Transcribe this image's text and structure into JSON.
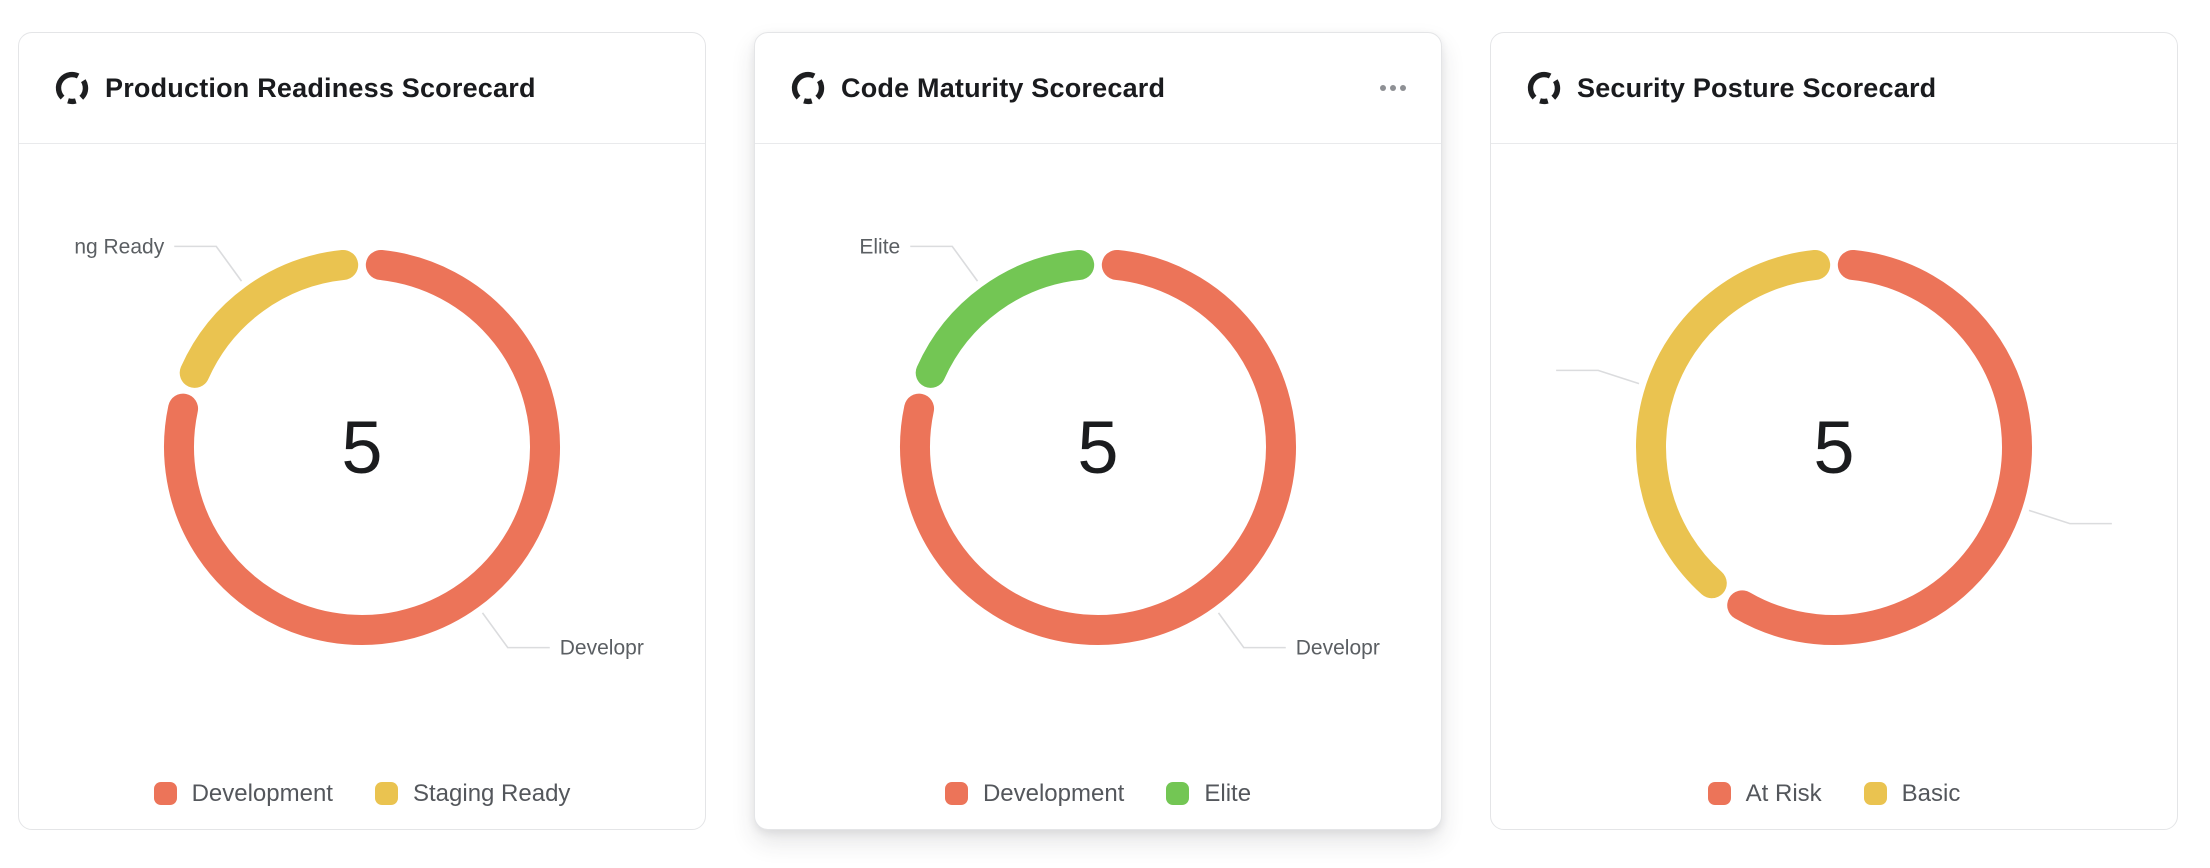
{
  "page": {
    "background": "#ffffff"
  },
  "colors": {
    "red": "#EC7459",
    "yellow": "#EAC350",
    "green": "#73C654",
    "leader_line": "#DBDCDE",
    "title_text": "#1A1B1E",
    "legend_text": "#54575C",
    "callout_text": "#5B5F63",
    "center_text": "#1B1C1E",
    "card_border": "#E4E5E7"
  },
  "chart_data": [
    {
      "type": "pie",
      "donut": true,
      "title": "Production Readiness Scorecard",
      "icon": "donut-chart-icon",
      "center_label": "5",
      "total": 5,
      "legend_position": "bottom",
      "series": [
        {
          "name": "Development",
          "value": 4,
          "color": "#EC7459",
          "callout_text": "Developr"
        },
        {
          "name": "Staging Ready",
          "value": 1,
          "color": "#EAC350",
          "callout_text": "ng Ready"
        }
      ]
    },
    {
      "type": "pie",
      "donut": true,
      "title": "Code Maturity Scorecard",
      "icon": "donut-chart-icon",
      "menu_icon": "more-horizontal",
      "center_label": "5",
      "total": 5,
      "legend_position": "bottom",
      "series": [
        {
          "name": "Development",
          "value": 4,
          "color": "#EC7459",
          "callout_text": "Developr"
        },
        {
          "name": "Elite",
          "value": 1,
          "color": "#73C654",
          "callout_text": "Elite"
        }
      ]
    },
    {
      "type": "pie",
      "donut": true,
      "title": "Security Posture Scorecard",
      "icon": "donut-chart-icon",
      "center_label": "5",
      "total": 5,
      "legend_position": "bottom",
      "series": [
        {
          "name": "At Risk",
          "value": 3,
          "color": "#EC7459",
          "callout_text": ""
        },
        {
          "name": "Basic",
          "value": 2,
          "color": "#EAC350",
          "callout_text": ""
        }
      ]
    }
  ]
}
